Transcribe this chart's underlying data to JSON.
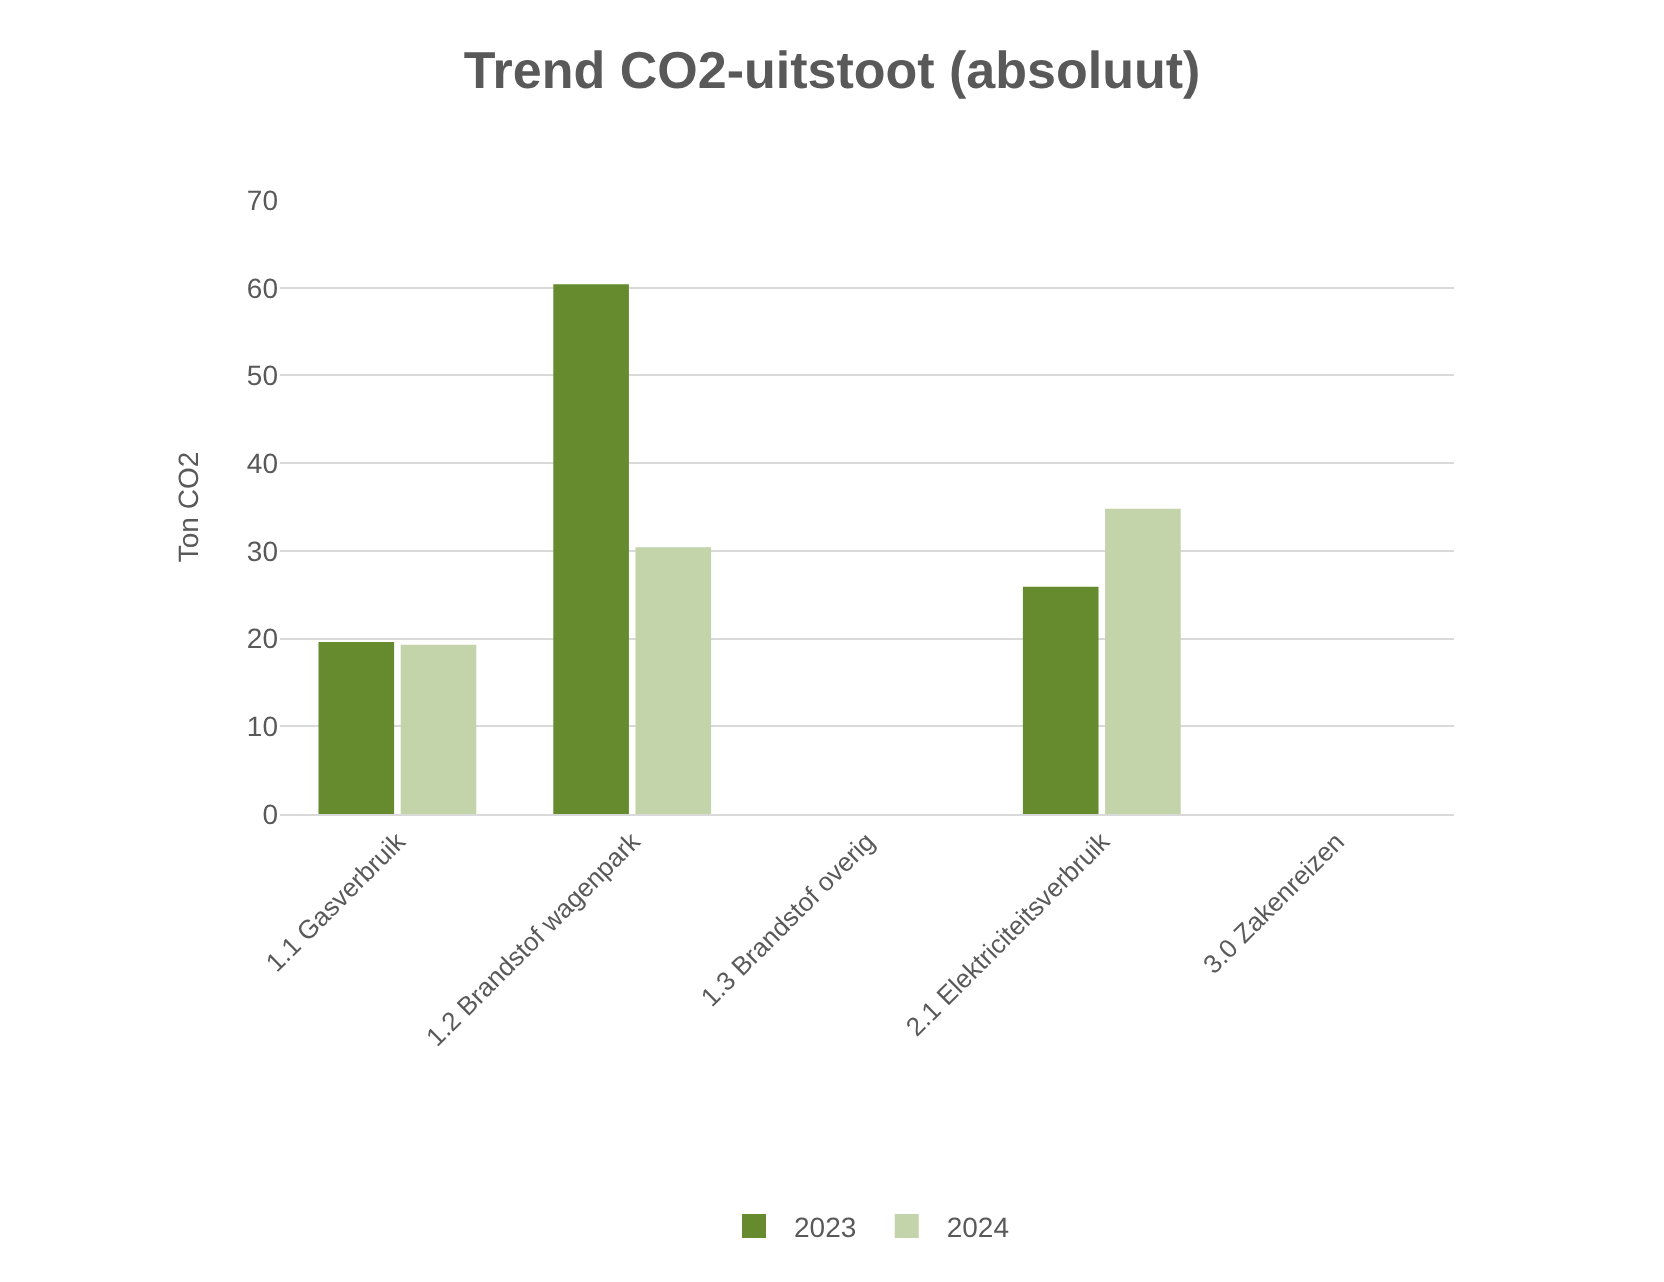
{
  "chart_data": {
    "type": "bar",
    "title": "Trend CO2-uitstoot (absoluut)",
    "ylabel": "Ton CO2",
    "categories": [
      "1.1 Gasverbruik",
      "1.2 Brandstof wagenpark",
      "1.3 Brandstof overig",
      "2.1 Elektriciteitsverbruik",
      "3.0 Zakenreizen"
    ],
    "series": [
      {
        "name": "2023",
        "color": "#668a2e",
        "values": [
          19.6,
          60.4,
          null,
          25.9,
          null
        ]
      },
      {
        "name": "2024",
        "color": "#c3d3aa",
        "values": [
          19.3,
          30.4,
          null,
          34.8,
          null
        ]
      }
    ],
    "ylim": [
      0,
      70
    ],
    "yticks": [
      0,
      10,
      20,
      30,
      40,
      50,
      60,
      70
    ],
    "grid": "y",
    "legend": "bottom"
  }
}
